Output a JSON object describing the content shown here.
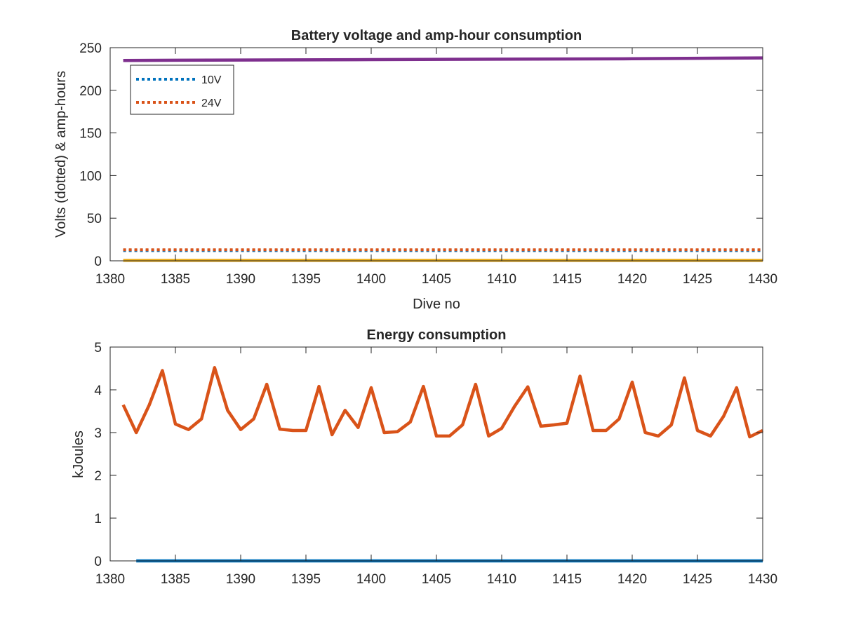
{
  "chart_data": [
    {
      "type": "line",
      "title": "Battery voltage and amp-hour consumption",
      "xlabel": "Dive no",
      "ylabel": "Volts (dotted) & amp-hours",
      "xlim": [
        1380,
        1430
      ],
      "ylim": [
        0,
        250
      ],
      "xticks": [
        1380,
        1385,
        1390,
        1395,
        1400,
        1405,
        1410,
        1415,
        1420,
        1425,
        1430
      ],
      "yticks": [
        0,
        50,
        100,
        150,
        200,
        250
      ],
      "grid": false,
      "legend_position": "top-left",
      "series": [
        {
          "name": "10V",
          "style": "dotted",
          "color": "#0072BD",
          "x": [
            1381,
            1430
          ],
          "y": [
            12,
            12
          ]
        },
        {
          "name": "24V",
          "style": "dotted",
          "color": "#D95319",
          "x": [
            1381,
            1430
          ],
          "y": [
            13,
            13
          ]
        },
        {
          "style": "solid",
          "color": "#EDB120",
          "x": [
            1381,
            1430
          ],
          "y": [
            0.5,
            0.5
          ]
        },
        {
          "style": "solid",
          "color": "#7E2F8E",
          "x": [
            1381,
            1390,
            1400,
            1410,
            1420,
            1430
          ],
          "y": [
            235,
            235.5,
            236,
            236.5,
            237,
            238
          ]
        }
      ]
    },
    {
      "type": "line",
      "title": "Energy consumption",
      "xlabel": "",
      "ylabel": "kJoules",
      "xlim": [
        1380,
        1430
      ],
      "ylim": [
        0,
        5
      ],
      "xticks": [
        1380,
        1385,
        1390,
        1395,
        1400,
        1405,
        1410,
        1415,
        1420,
        1425,
        1430
      ],
      "yticks": [
        0,
        1,
        2,
        3,
        4,
        5
      ],
      "grid": false,
      "series": [
        {
          "style": "solid",
          "color": "#0072BD",
          "x": [
            1382,
            1430
          ],
          "y": [
            0,
            0
          ]
        },
        {
          "style": "solid",
          "color": "#D95319",
          "x": [
            1381,
            1382,
            1383,
            1384,
            1385,
            1386,
            1387,
            1388,
            1389,
            1390,
            1391,
            1392,
            1393,
            1394,
            1395,
            1396,
            1397,
            1398,
            1399,
            1400,
            1401,
            1402,
            1403,
            1404,
            1405,
            1406,
            1407,
            1408,
            1409,
            1410,
            1411,
            1412,
            1413,
            1414,
            1415,
            1416,
            1417,
            1418,
            1419,
            1420,
            1421,
            1422,
            1423,
            1424,
            1425,
            1426,
            1427,
            1428,
            1429,
            1430
          ],
          "y": [
            3.65,
            3.0,
            3.65,
            4.45,
            3.2,
            3.07,
            3.32,
            4.52,
            3.52,
            3.07,
            3.32,
            4.13,
            3.08,
            3.05,
            3.05,
            4.08,
            2.95,
            3.52,
            3.12,
            4.05,
            3.0,
            3.02,
            3.25,
            4.08,
            2.92,
            2.92,
            3.18,
            4.13,
            2.92,
            3.1,
            3.62,
            4.07,
            3.15,
            3.18,
            3.22,
            4.32,
            3.05,
            3.05,
            3.32,
            4.18,
            3.0,
            2.92,
            3.18,
            4.28,
            3.05,
            2.92,
            3.38,
            4.05,
            2.9,
            3.05
          ]
        }
      ]
    }
  ]
}
